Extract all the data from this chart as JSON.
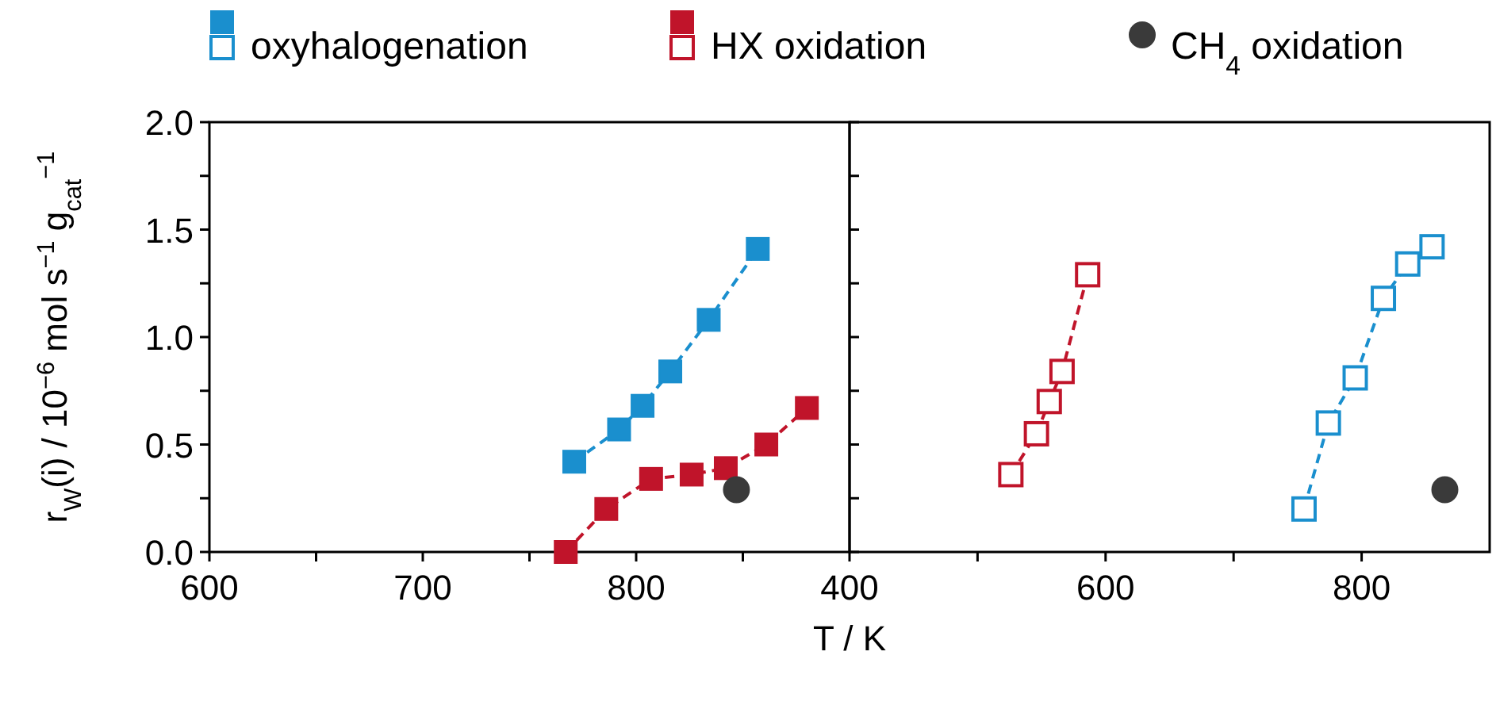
{
  "chart_data": [
    {
      "type": "line",
      "xlabel": "T / K",
      "ylabel": "r$_{W}$(i) / 10$^{−6}$ mol s$^{−1}$ g$_{cat}$$^{−1}$",
      "legend": "top",
      "line_style": "dashed",
      "xlim": [
        600,
        900
      ],
      "xticks": [
        600,
        {
          "value": 650,
          "label": null
        },
        700,
        {
          "value": 750,
          "label": null
        },
        800,
        {
          "value": 850,
          "label": null
        }
      ],
      "ylim": [
        0,
        2
      ],
      "yticks": [
        {
          "value": 0,
          "label": "0.0"
        },
        {
          "value": 0.25,
          "label": null
        },
        {
          "value": 0.5,
          "label": "0.5"
        },
        {
          "value": 0.75,
          "label": null
        },
        {
          "value": 1,
          "label": "1.0"
        },
        {
          "value": 1.25,
          "label": null
        },
        {
          "value": 1.5,
          "label": "1.5"
        },
        {
          "value": 1.75,
          "label": null
        },
        {
          "value": 2,
          "label": "2.0"
        }
      ],
      "series": [
        {
          "name": "oxyhalogenation",
          "color": "#1a8fce",
          "marker": "square",
          "x": [
            771,
            792,
            803,
            816,
            834,
            857
          ],
          "values": [
            0.42,
            0.57,
            0.68,
            0.84,
            1.08,
            1.41
          ]
        },
        {
          "name": "HX oxidation",
          "color": "#c0142a",
          "marker": "square",
          "x": [
            767,
            786,
            807,
            826,
            842,
            861,
            880
          ],
          "values": [
            0.0,
            0.2,
            0.34,
            0.36,
            0.39,
            0.5,
            0.67
          ]
        },
        {
          "name": "CH$_{4}$ oxidation",
          "type": "scatter",
          "color": "#3a3a3a",
          "marker": "circle",
          "x": [
            847
          ],
          "values": [
            0.29
          ]
        }
      ]
    },
    {
      "type": "line",
      "line_style": "dashed",
      "tick_labels": "x",
      "xlim": [
        400,
        900
      ],
      "xticks": [
        400,
        {
          "value": 500,
          "label": null
        },
        600,
        {
          "value": 700,
          "label": null
        },
        800
      ],
      "ylim": [
        0,
        2
      ],
      "yticks": [
        {
          "value": 0,
          "label": null
        },
        {
          "value": 0.25,
          "label": null
        },
        {
          "value": 0.5,
          "label": null
        },
        {
          "value": 0.75,
          "label": null
        },
        {
          "value": 1,
          "label": null
        },
        {
          "value": 1.25,
          "label": null
        },
        {
          "value": 1.5,
          "label": null
        },
        {
          "value": 1.75,
          "label": null
        },
        {
          "value": 2,
          "label": null
        }
      ],
      "series": [
        {
          "name": "HX oxidation",
          "color": "#c0142a",
          "marker": "square",
          "x": [
            526,
            546,
            556,
            566,
            586
          ],
          "values": [
            0.36,
            0.55,
            0.7,
            0.84,
            1.29
          ]
        },
        {
          "name": "oxyhalogenation",
          "color": "#1a8fce",
          "marker": "square",
          "x": [
            755,
            774,
            795,
            817,
            836,
            855
          ],
          "values": [
            0.2,
            0.6,
            0.81,
            1.18,
            1.34,
            1.42
          ]
        },
        {
          "type": "scatter",
          "color": "#3a3a3a",
          "marker": "circle",
          "x": [
            865
          ],
          "values": [
            0.29
          ]
        }
      ]
    }
  ]
}
